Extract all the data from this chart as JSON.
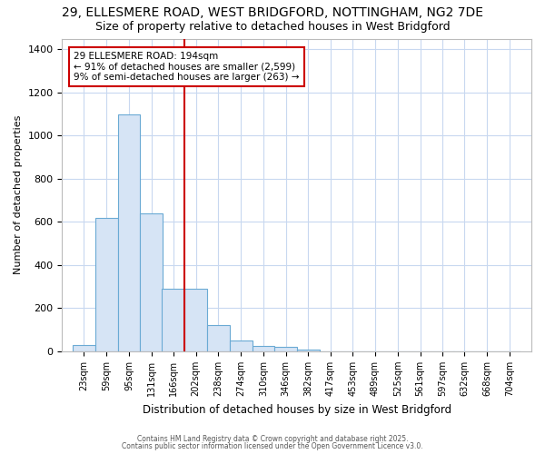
{
  "title_line1": "29, ELLESMERE ROAD, WEST BRIDGFORD, NOTTINGHAM, NG2 7DE",
  "title_line2": "Size of property relative to detached houses in West Bridgford",
  "xlabel": "Distribution of detached houses by size in West Bridgford",
  "ylabel": "Number of detached properties",
  "bar_edges": [
    23,
    59,
    95,
    131,
    166,
    202,
    238,
    274,
    310,
    346,
    382,
    417,
    453,
    489,
    525,
    561,
    597,
    632,
    668,
    704,
    740
  ],
  "bar_heights": [
    30,
    620,
    1100,
    640,
    290,
    290,
    120,
    50,
    25,
    20,
    10,
    0,
    0,
    0,
    0,
    0,
    0,
    0,
    0,
    0
  ],
  "bar_color": "#d6e4f5",
  "bar_edge_color": "#6aaad4",
  "ylim": [
    0,
    1450
  ],
  "yticks": [
    0,
    200,
    400,
    600,
    800,
    1000,
    1200,
    1400
  ],
  "vline_x": 202,
  "vline_color": "#cc0000",
  "annotation_text": "29 ELLESMERE ROAD: 194sqm\n← 91% of detached houses are smaller (2,599)\n9% of semi-detached houses are larger (263) →",
  "annotation_box_color": "#cc0000",
  "footer_line1": "Contains HM Land Registry data © Crown copyright and database right 2025.",
  "footer_line2": "Contains public sector information licensed under the Open Government Licence v3.0.",
  "bg_color": "#ffffff",
  "grid_color": "#c8d8f0"
}
